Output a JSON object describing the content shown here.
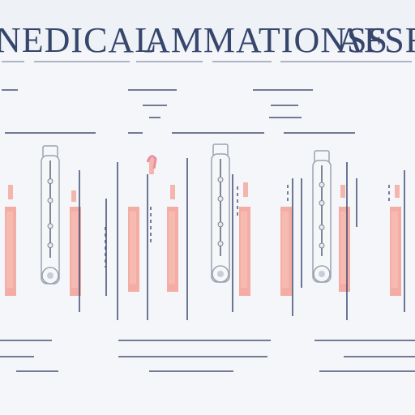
{
  "title": {
    "part1": "NEDICAL",
    "part2": "AMMATIONSS",
    "part3": "AFSF"
  },
  "palette": {
    "background": "#f4f6fa",
    "ink": "#35456b",
    "salmon": "#f4a59a",
    "salmon_light": "#f8c3bb",
    "navy_rule": "#3e4b73",
    "device_fill": "#f6f7f9",
    "device_stroke": "#9aa3b2"
  },
  "panels": [
    {
      "tall_bars": 3,
      "devices": 1
    },
    {
      "tall_bars": 4,
      "devices": 1
    },
    {
      "tall_bars": 3,
      "devices": 1
    },
    {
      "tall_bars": 2,
      "devices": 1
    }
  ]
}
